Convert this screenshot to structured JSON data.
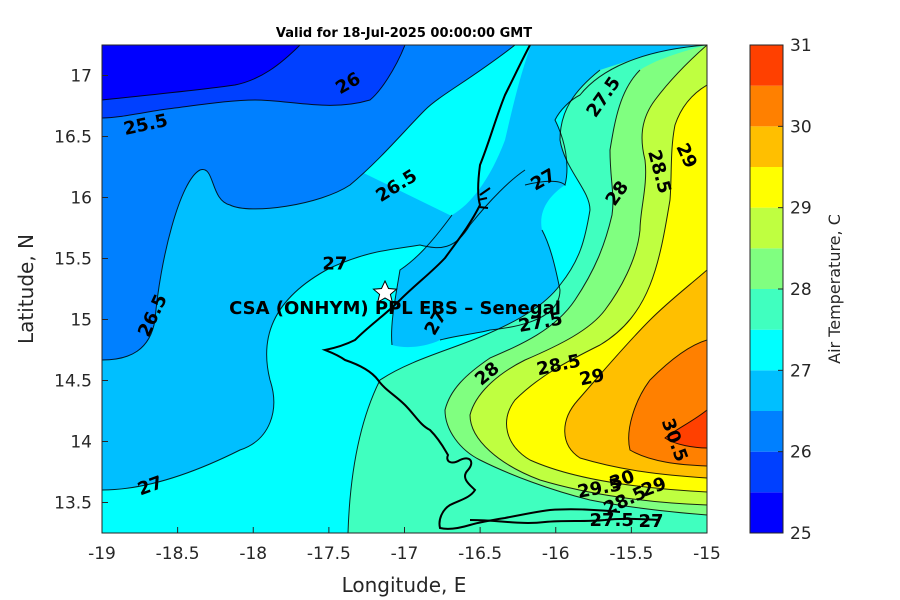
{
  "title": "Valid for 18-Jul-2025 00:00:00 GMT",
  "xlabel": "Longitude, E",
  "ylabel": "Latitude, N",
  "x_ticks": [
    "-19",
    "-18.5",
    "-18",
    "-17.5",
    "-17",
    "-16.5",
    "-16",
    "-15.5",
    "-15"
  ],
  "y_ticks": [
    "17",
    "16.5",
    "16",
    "15.5",
    "15",
    "14.5",
    "14",
    "13.5"
  ],
  "colorbar": {
    "label": "Air Temperature, C",
    "ticks": [
      "25",
      "26",
      "27",
      "28",
      "29",
      "30",
      "31"
    ],
    "levels": [
      25,
      25.5,
      26,
      26.5,
      27,
      27.5,
      28,
      28.5,
      29,
      29.5,
      30,
      30.5,
      31
    ],
    "colors": [
      "#0000ff",
      "#0040ff",
      "#0080ff",
      "#00bfff",
      "#00ffff",
      "#40ffbf",
      "#80ff80",
      "#bfff40",
      "#ffff00",
      "#ffbf00",
      "#ff8000",
      "#ff4000"
    ]
  },
  "site": {
    "label": "CSA (ONHYM) PPL EBS  – Senegal",
    "marker": "star-icon"
  },
  "contour_labels": [
    {
      "text": "25.5",
      "lon": -18.71,
      "lat": 16.59,
      "rot": -12
    },
    {
      "text": "26",
      "lon": -17.37,
      "lat": 16.93,
      "rot": -30
    },
    {
      "text": "26.5",
      "lon": -17.05,
      "lat": 16.09,
      "rot": -32
    },
    {
      "text": "27",
      "lon": -16.08,
      "lat": 16.14,
      "rot": -30
    },
    {
      "text": "27.5",
      "lon": -15.68,
      "lat": 16.82,
      "rot": -55
    },
    {
      "text": "28",
      "lon": -15.59,
      "lat": 16.03,
      "rot": -55
    },
    {
      "text": "28.5",
      "lon": -15.32,
      "lat": 16.21,
      "rot": 75
    },
    {
      "text": "29",
      "lon": -15.14,
      "lat": 16.34,
      "rot": 65
    },
    {
      "text": "27",
      "lon": -17.46,
      "lat": 15.45,
      "rot": 0
    },
    {
      "text": "26.5",
      "lon": -18.66,
      "lat": 15.03,
      "rot": -65
    },
    {
      "text": "27",
      "lon": -16.79,
      "lat": 14.97,
      "rot": -60
    },
    {
      "text": "27.5",
      "lon": -16.1,
      "lat": 14.97,
      "rot": -10
    },
    {
      "text": "28",
      "lon": -16.45,
      "lat": 14.55,
      "rot": -40
    },
    {
      "text": "28.5",
      "lon": -15.98,
      "lat": 14.62,
      "rot": -12
    },
    {
      "text": "29",
      "lon": -15.76,
      "lat": 14.52,
      "rot": -12
    },
    {
      "text": "30.5",
      "lon": -15.22,
      "lat": 14.01,
      "rot": 70
    },
    {
      "text": "27",
      "lon": -18.68,
      "lat": 13.63,
      "rot": -20
    },
    {
      "text": "29.5",
      "lon": -15.71,
      "lat": 13.61,
      "rot": -10
    },
    {
      "text": "30",
      "lon": -15.56,
      "lat": 13.68,
      "rot": -20
    },
    {
      "text": "29",
      "lon": -15.35,
      "lat": 13.62,
      "rot": -20
    },
    {
      "text": "28.5",
      "lon": -15.54,
      "lat": 13.51,
      "rot": -25
    },
    {
      "text": "27.5",
      "lon": -15.63,
      "lat": 13.35,
      "rot": 0
    },
    {
      "text": "27",
      "lon": -15.37,
      "lat": 13.34,
      "rot": 0
    }
  ]
}
